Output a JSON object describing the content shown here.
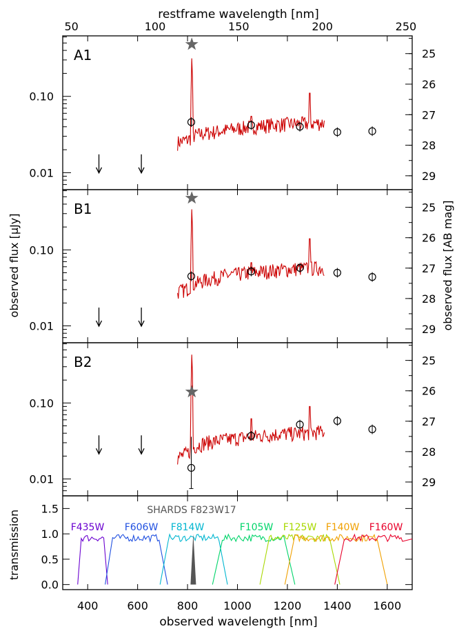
{
  "figure": {
    "top_axis_title": "restframe wavelength [nm]",
    "bottom_axis_title": "observed wavelength [nm]",
    "left_axis_title": "observed flux [μJy]",
    "right_axis_title": "observed flux [AB mag]",
    "top_ticks": [
      "50",
      "100",
      "150",
      "200",
      "250"
    ],
    "bottom_ticks": [
      "400",
      "600",
      "800",
      "1000",
      "1200",
      "1400",
      "1600"
    ],
    "flux_ticks": [
      "0.10",
      "0.01"
    ],
    "mag_ticks": [
      "25",
      "26",
      "27",
      "28",
      "29"
    ],
    "transmission_ticks": [
      "1.5",
      "1.0",
      "0.5",
      "0.0"
    ],
    "transmission_label": "transmission",
    "shards_label": "SHARDS F823W17",
    "colors": {
      "spectrum": "#cc0000",
      "star": "#666666",
      "shards": "#555555"
    }
  },
  "chart_data": [
    {
      "type": "line",
      "panel": "A1",
      "xlabel": "observed wavelength [nm]",
      "ylabel": "observed flux [μJy]",
      "xlim": [
        300,
        1700
      ],
      "ylog": true,
      "upper_limits_x": [
        445,
        615
      ],
      "upper_limits_y": [
        0.013,
        0.013
      ],
      "photometry_x": [
        815,
        1055,
        1250,
        1400,
        1540
      ],
      "photometry_y": [
        0.046,
        0.042,
        0.04,
        0.034,
        0.035
      ],
      "lya_peak_y": 0.35,
      "star_y": 0.48,
      "spectrum_baseline": [
        [
          760,
          0.025
        ],
        [
          800,
          0.027
        ],
        [
          830,
          0.031
        ],
        [
          870,
          0.033
        ],
        [
          950,
          0.036
        ],
        [
          1050,
          0.04
        ],
        [
          1150,
          0.043
        ],
        [
          1250,
          0.044
        ],
        [
          1350,
          0.045
        ]
      ],
      "spectrum_spikes": [
        [
          1055,
          0.055
        ],
        [
          1290,
          0.11
        ]
      ]
    },
    {
      "type": "line",
      "panel": "B1",
      "xlabel": "observed wavelength [nm]",
      "ylabel": "observed flux [μJy]",
      "xlim": [
        300,
        1700
      ],
      "ylog": true,
      "upper_limits_x": [
        445,
        615
      ],
      "upper_limits_y": [
        0.013,
        0.013
      ],
      "photometry_x": [
        815,
        1055,
        1250,
        1400,
        1540
      ],
      "photometry_y": [
        0.045,
        0.052,
        0.058,
        0.05,
        0.044
      ],
      "lya_peak_y": 0.38,
      "star_y": 0.48,
      "spectrum_baseline": [
        [
          760,
          0.028
        ],
        [
          800,
          0.031
        ],
        [
          830,
          0.036
        ],
        [
          870,
          0.04
        ],
        [
          950,
          0.046
        ],
        [
          1050,
          0.05
        ],
        [
          1150,
          0.054
        ],
        [
          1250,
          0.057
        ],
        [
          1350,
          0.058
        ]
      ],
      "spectrum_spikes": [
        [
          1055,
          0.068
        ],
        [
          1290,
          0.14
        ]
      ]
    },
    {
      "type": "line",
      "panel": "B2",
      "xlabel": "observed wavelength [nm]",
      "ylabel": "observed flux [μJy]",
      "xlim": [
        300,
        1700
      ],
      "ylog": true,
      "upper_limits_x": [
        445,
        615
      ],
      "upper_limits_y": [
        0.028,
        0.028
      ],
      "photometry_x": [
        815,
        1055,
        1250,
        1400,
        1540
      ],
      "photometry_y": [
        0.014,
        0.037,
        0.052,
        0.058,
        0.045
      ],
      "lya_peak_y": 0.48,
      "star_y": 0.14,
      "spectrum_baseline": [
        [
          760,
          0.019
        ],
        [
          800,
          0.022
        ],
        [
          830,
          0.027
        ],
        [
          870,
          0.03
        ],
        [
          950,
          0.033
        ],
        [
          1050,
          0.036
        ],
        [
          1150,
          0.039
        ],
        [
          1250,
          0.04
        ],
        [
          1350,
          0.042
        ]
      ],
      "spectrum_spikes": [
        [
          1055,
          0.062
        ],
        [
          1290,
          0.09
        ]
      ]
    },
    {
      "type": "area",
      "panel": "filters",
      "ylabel": "transmission",
      "xlim": [
        300,
        1700
      ],
      "ylim": [
        -0.1,
        1.75
      ],
      "filters": [
        {
          "name": "F435W",
          "color": "#6a00d0",
          "range": [
            360,
            480
          ]
        },
        {
          "name": "F606W",
          "color": "#1f4fe0",
          "range": [
            470,
            720
          ]
        },
        {
          "name": "F814W",
          "color": "#00b6d0",
          "range": [
            690,
            960
          ]
        },
        {
          "name": "F105W",
          "color": "#00d46a",
          "range": [
            900,
            1230
          ]
        },
        {
          "name": "F125W",
          "color": "#a8d800",
          "range": [
            1090,
            1410
          ]
        },
        {
          "name": "F140W",
          "color": "#f0a000",
          "range": [
            1190,
            1600
          ]
        },
        {
          "name": "F160W",
          "color": "#e8002a",
          "range": [
            1390,
            1700
          ]
        }
      ]
    }
  ]
}
